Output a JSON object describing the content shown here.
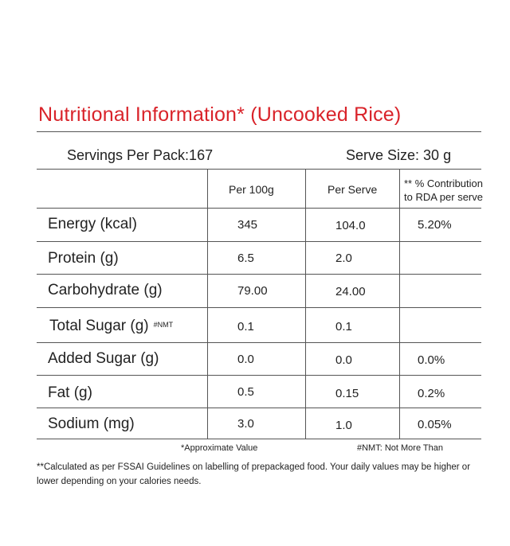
{
  "title": "Nutritional Information*  (Uncooked Rice)",
  "servings_per_pack": "Servings Per Pack:167",
  "serve_size": "Serve Size: 30 g",
  "columns": {
    "per100": "Per 100g",
    "perserve": "Per Serve",
    "rda_line1": "** % Contribution",
    "rda_line2": "to RDA per serve"
  },
  "rows": [
    {
      "label": "Energy (kcal)",
      "per100": "345",
      "perserve": "104.0",
      "rda": "5.20%"
    },
    {
      "label": "Protein (g)",
      "per100": "6.5",
      "perserve": "2.0",
      "rda": ""
    },
    {
      "label": "Carbohydrate (g)",
      "per100": "79.00",
      "perserve": "24.00",
      "rda": ""
    },
    {
      "label": "Total Sugar (g)",
      "tag": "#NMT",
      "per100": "0.1",
      "perserve": "0.1",
      "rda": ""
    },
    {
      "label": "Added Sugar (g)",
      "per100": "0.0",
      "perserve": "0.0",
      "rda": "0.0%"
    },
    {
      "label": "Fat (g)",
      "per100": "0.5",
      "perserve": "0.15",
      "rda": "0.2%"
    },
    {
      "label": "Sodium (mg)",
      "per100": "3.0",
      "perserve": "1.0",
      "rda": "0.05%"
    }
  ],
  "footnotes": {
    "approx": "*Approximate Value",
    "nmt": "#NMT: Not More Than",
    "note": "**Calculated as per FSSAI Guidelines on labelling of prepackaged food. Your daily values may be higher or lower depending on your calories needs."
  },
  "colors": {
    "title": "#d9232a",
    "lines": "#555555"
  }
}
